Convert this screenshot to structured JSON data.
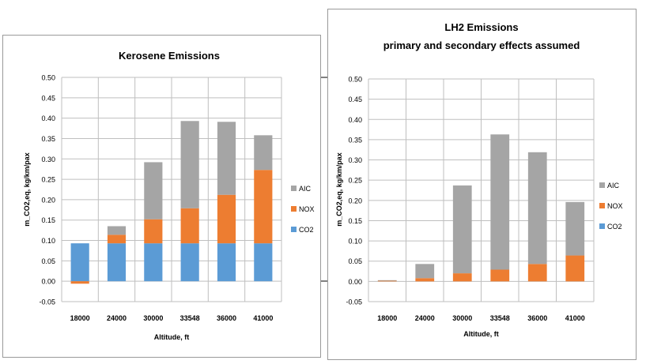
{
  "chart_data": [
    {
      "type": "bar",
      "stacked": true,
      "title": "Kerosene  Emissions",
      "subtitle": "",
      "xlabel": "Altitude, ft",
      "ylabel": "m_CO2,eq, kg/km/pax",
      "ylim": [
        -0.05,
        0.5
      ],
      "ytick_labels": [
        "0.50",
        "0.45",
        "0.40",
        "0.35",
        "0.30",
        "0.25",
        "0.20",
        "0.15",
        "0.10",
        "0.05",
        "0.00",
        "-0.05"
      ],
      "yticks": [
        0.5,
        0.45,
        0.4,
        0.35,
        0.3,
        0.25,
        0.2,
        0.15,
        0.1,
        0.05,
        0.0,
        -0.05
      ],
      "categories": [
        "18000",
        "24000",
        "30000",
        "33548",
        "36000",
        "41000"
      ],
      "grid": true,
      "legend_position": "right",
      "series": [
        {
          "name": "CO2",
          "color": "#5b9bd5",
          "values": [
            0.093,
            0.093,
            0.093,
            0.093,
            0.093,
            0.093
          ]
        },
        {
          "name": "NOX",
          "color": "#ed7d31",
          "values": [
            -0.006,
            0.021,
            0.059,
            0.086,
            0.119,
            0.18
          ]
        },
        {
          "name": "AIC",
          "color": "#a5a5a5",
          "values": [
            0.0,
            0.021,
            0.14,
            0.214,
            0.179,
            0.085
          ]
        }
      ],
      "legend_order": [
        "AIC",
        "NOX",
        "CO2"
      ]
    },
    {
      "type": "bar",
      "stacked": true,
      "title": "LH2  Emissions",
      "subtitle": "primary and secondary effects assumed",
      "xlabel": "Altitude, ft",
      "ylabel": "m_CO2,eq, kg/km/pax",
      "ylim": [
        -0.05,
        0.5
      ],
      "ytick_labels": [
        "0.50",
        "0.45",
        "0.40",
        "0.35",
        "0.30",
        "0.25",
        "0.20",
        "0.15",
        "0.10",
        "0.05",
        "0.00",
        "-0.05"
      ],
      "yticks": [
        0.5,
        0.45,
        0.4,
        0.35,
        0.3,
        0.25,
        0.2,
        0.15,
        0.1,
        0.05,
        0.0,
        -0.05
      ],
      "categories": [
        "18000",
        "24000",
        "30000",
        "33548",
        "36000",
        "41000"
      ],
      "grid": true,
      "legend_position": "right",
      "series": [
        {
          "name": "CO2",
          "color": "#5b9bd5",
          "values": [
            0.0,
            0.0,
            0.0,
            0.0,
            0.0,
            0.0
          ]
        },
        {
          "name": "NOX",
          "color": "#ed7d31",
          "values": [
            0.002,
            0.008,
            0.02,
            0.029,
            0.043,
            0.064
          ]
        },
        {
          "name": "AIC",
          "color": "#a5a5a5",
          "values": [
            0.001,
            0.035,
            0.217,
            0.334,
            0.276,
            0.132
          ]
        }
      ],
      "legend_order": [
        "AIC",
        "NOX",
        "CO2"
      ]
    }
  ]
}
